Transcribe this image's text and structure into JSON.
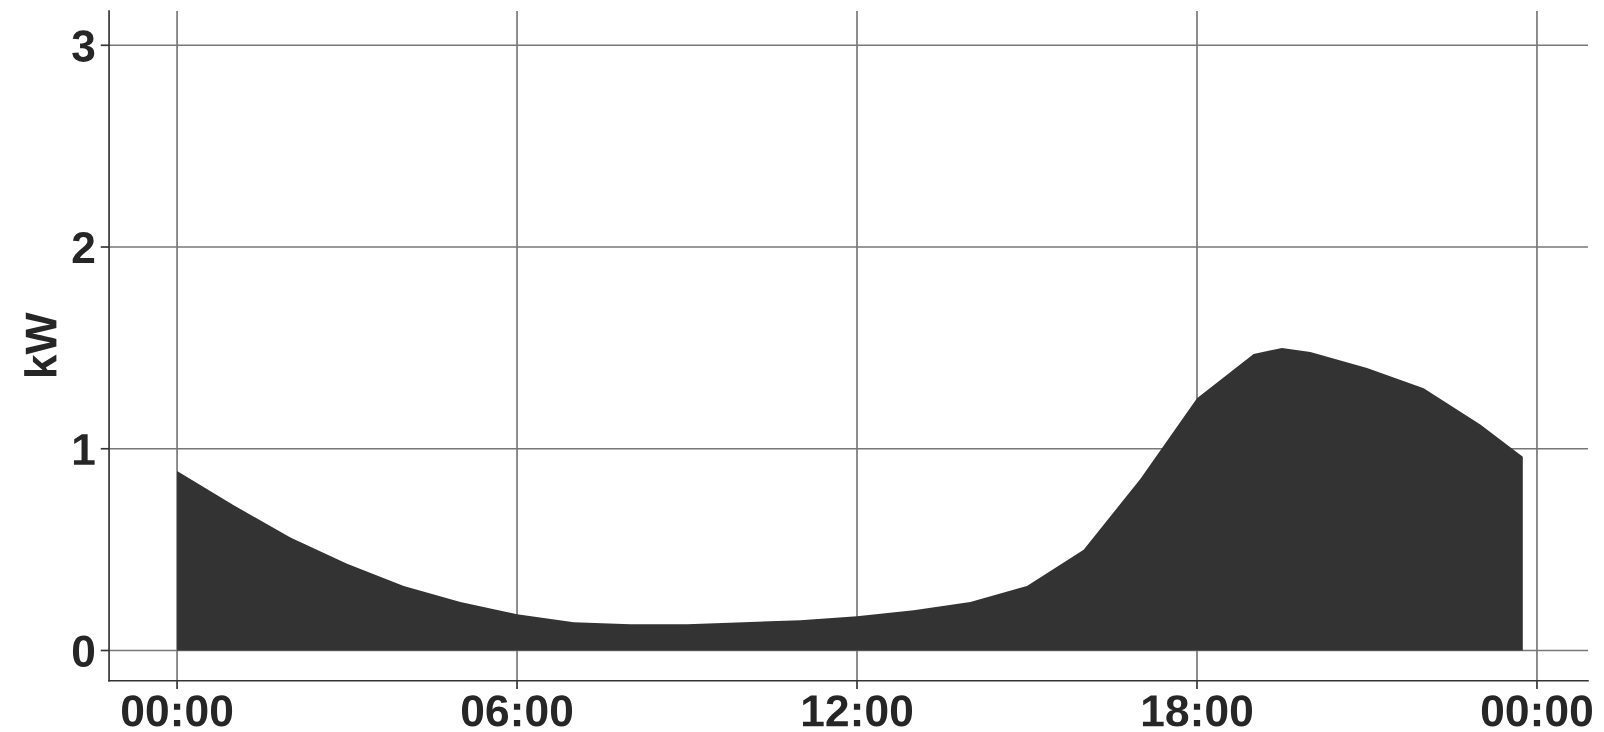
{
  "chart_data": {
    "type": "area",
    "ylabel": "kW",
    "color": "#333333",
    "x": [
      0,
      1,
      2,
      3,
      4,
      5,
      6,
      7,
      8,
      9,
      10,
      11,
      12,
      13,
      14,
      15,
      16,
      17,
      18,
      19,
      19.5,
      20,
      21,
      22,
      23,
      23.75
    ],
    "values": [
      0.89,
      0.72,
      0.56,
      0.43,
      0.32,
      0.24,
      0.18,
      0.14,
      0.13,
      0.13,
      0.14,
      0.15,
      0.17,
      0.2,
      0.24,
      0.32,
      0.5,
      0.85,
      1.25,
      1.47,
      1.5,
      1.48,
      1.4,
      1.3,
      1.12,
      0.96
    ],
    "xlim": [
      -1.2,
      24.9
    ],
    "ylim": [
      -0.15,
      3.17
    ],
    "xticks": [
      {
        "value": 0,
        "label": "00:00"
      },
      {
        "value": 6,
        "label": "06:00"
      },
      {
        "value": 12,
        "label": "12:00"
      },
      {
        "value": 18,
        "label": "18:00"
      },
      {
        "value": 24,
        "label": "00:00"
      }
    ],
    "yticks": [
      0,
      1,
      2,
      3
    ],
    "grid": true
  }
}
